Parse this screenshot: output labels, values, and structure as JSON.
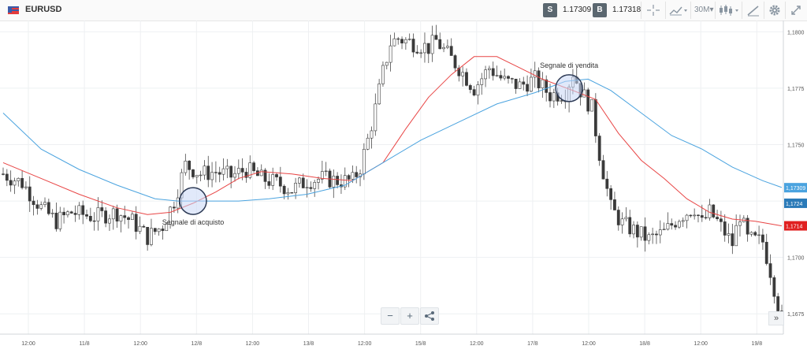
{
  "toolbar": {
    "symbol": "EURUSD",
    "sell_label": "S",
    "sell_price": "1.17309",
    "buy_label": "B",
    "buy_price": "1.17318",
    "timeframe": "30M▾",
    "icons": [
      "us-flag-icon",
      "crosshair-icon",
      "chart-type-icon",
      "indicators-icon",
      "drawing-icon",
      "settings-icon",
      "fullscreen-icon"
    ]
  },
  "zoom": {
    "minus": "−",
    "plus": "+"
  },
  "scroll_label": "»",
  "chart_data": {
    "type": "candlestick",
    "title": "",
    "xlabel": "",
    "ylabel": "",
    "x_ticks": [
      "12:00",
      "11/8",
      "12:00",
      "12/8",
      "12:00",
      "13/8",
      "12:00",
      "15/8",
      "12:00",
      "17/8",
      "12:00",
      "18/8",
      "12:00",
      "19/8"
    ],
    "y_ticks": [
      "1,1800",
      "1,1775",
      "1,1750",
      "1,1725",
      "1,1700",
      "1,1675"
    ],
    "ylim": [
      1.1666,
      1.1805
    ],
    "grid": true,
    "price_labels": [
      {
        "value": 1.17309,
        "text": "1,17309",
        "color": "#4aa3df"
      },
      {
        "value": 1.1724,
        "text": "1,1724",
        "color": "#2a7ab8"
      },
      {
        "value": 1.1714,
        "text": "1,1714",
        "color": "#e02020"
      }
    ],
    "anchors": [
      [
        0,
        1.1737
      ],
      [
        5,
        1.1733
      ],
      [
        10,
        1.1722
      ],
      [
        14,
        1.1716
      ],
      [
        18,
        1.172
      ],
      [
        24,
        1.1718
      ],
      [
        30,
        1.172
      ],
      [
        34,
        1.1716
      ],
      [
        38,
        1.1709
      ],
      [
        42,
        1.1714
      ],
      [
        45,
        1.1725
      ],
      [
        48,
        1.1741
      ],
      [
        52,
        1.1737
      ],
      [
        56,
        1.1738
      ],
      [
        60,
        1.1736
      ],
      [
        64,
        1.1739
      ],
      [
        68,
        1.1735
      ],
      [
        72,
        1.1733
      ],
      [
        76,
        1.173
      ],
      [
        80,
        1.1734
      ],
      [
        84,
        1.1735
      ],
      [
        88,
        1.1734
      ],
      [
        92,
        1.1734
      ],
      [
        94,
        1.174
      ],
      [
        96,
        1.1752
      ],
      [
        98,
        1.1766
      ],
      [
        100,
        1.1782
      ],
      [
        102,
        1.1795
      ],
      [
        104,
        1.1797
      ],
      [
        108,
        1.1795
      ],
      [
        112,
        1.1793
      ],
      [
        114,
        1.1796
      ],
      [
        117,
        1.179
      ],
      [
        120,
        1.1784
      ],
      [
        124,
        1.1775
      ],
      [
        128,
        1.1784
      ],
      [
        132,
        1.1778
      ],
      [
        136,
        1.1776
      ],
      [
        140,
        1.1779
      ],
      [
        144,
        1.1772
      ],
      [
        148,
        1.1773
      ],
      [
        150,
        1.1782
      ],
      [
        152,
        1.1774
      ],
      [
        155,
        1.1766
      ],
      [
        157,
        1.1746
      ],
      [
        160,
        1.1722
      ],
      [
        163,
        1.1715
      ],
      [
        166,
        1.1712
      ],
      [
        170,
        1.1708
      ],
      [
        174,
        1.1711
      ],
      [
        178,
        1.1718
      ],
      [
        182,
        1.1722
      ],
      [
        184,
        1.1715
      ],
      [
        186,
        1.172
      ],
      [
        188,
        1.1716
      ],
      [
        190,
        1.1711
      ],
      [
        192,
        1.1706
      ],
      [
        194,
        1.1719
      ],
      [
        196,
        1.1708
      ],
      [
        200,
        1.1707
      ],
      [
        202,
        1.1694
      ],
      [
        205,
        1.1672
      ]
    ],
    "series": [
      {
        "name": "",
        "color": "#e84545",
        "values": [
          [
            0,
            1.1742
          ],
          [
            10,
            1.1735
          ],
          [
            20,
            1.1728
          ],
          [
            30,
            1.1722
          ],
          [
            38,
            1.1719
          ],
          [
            44,
            1.172
          ],
          [
            50,
            1.1724
          ],
          [
            56,
            1.1729
          ],
          [
            62,
            1.1735
          ],
          [
            68,
            1.1738
          ],
          [
            76,
            1.1737
          ],
          [
            84,
            1.1735
          ],
          [
            92,
            1.1734
          ],
          [
            100,
            1.1742
          ],
          [
            106,
            1.1757
          ],
          [
            112,
            1.1771
          ],
          [
            118,
            1.1781
          ],
          [
            124,
            1.1789
          ],
          [
            130,
            1.1789
          ],
          [
            136,
            1.1784
          ],
          [
            142,
            1.1779
          ],
          [
            150,
            1.1774
          ],
          [
            156,
            1.177
          ],
          [
            162,
            1.1755
          ],
          [
            168,
            1.1743
          ],
          [
            174,
            1.1735
          ],
          [
            180,
            1.1726
          ],
          [
            186,
            1.172
          ],
          [
            192,
            1.1717
          ],
          [
            198,
            1.1716
          ],
          [
            205,
            1.1714
          ]
        ]
      },
      {
        "name": "",
        "color": "#4aa3df",
        "values": [
          [
            0,
            1.1764
          ],
          [
            10,
            1.1748
          ],
          [
            20,
            1.1739
          ],
          [
            30,
            1.1732
          ],
          [
            40,
            1.1726
          ],
          [
            46,
            1.1725
          ],
          [
            54,
            1.1725
          ],
          [
            62,
            1.1725
          ],
          [
            70,
            1.1726
          ],
          [
            80,
            1.1728
          ],
          [
            90,
            1.1732
          ],
          [
            100,
            1.1742
          ],
          [
            110,
            1.1752
          ],
          [
            120,
            1.176
          ],
          [
            130,
            1.1768
          ],
          [
            140,
            1.1773
          ],
          [
            148,
            1.1778
          ],
          [
            154,
            1.1779
          ],
          [
            160,
            1.1774
          ],
          [
            168,
            1.1764
          ],
          [
            176,
            1.1754
          ],
          [
            184,
            1.1748
          ],
          [
            192,
            1.174
          ],
          [
            200,
            1.1734
          ],
          [
            205,
            1.1731
          ]
        ]
      }
    ],
    "annotations": [
      {
        "label": "Segnale di acquisto",
        "x": 50,
        "y": 1.1725
      },
      {
        "label": "Segnale di vendita",
        "x": 149,
        "y": 1.1775
      }
    ]
  }
}
